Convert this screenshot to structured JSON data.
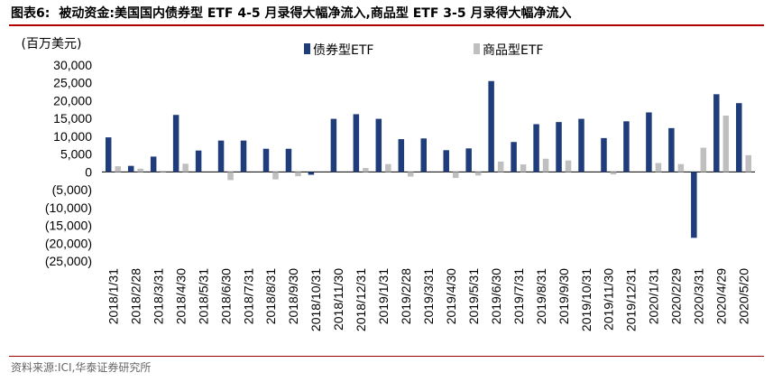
{
  "header": {
    "figure_label": "图表6:",
    "title": "被动资金:美国国内债券型 ETF 4-5 月录得大幅净流入,商品型 ETF 3-5 月录得大幅净流入"
  },
  "source": "资料来源:ICI,华泰证券研究所",
  "colors": {
    "bond": "#1f3d7a",
    "commodity": "#bfbfbf",
    "rule": "#b00000"
  },
  "chart_data": {
    "type": "bar",
    "title": "",
    "xlabel": "",
    "ylabel": "(百万美元)",
    "ylim": [
      -25000,
      30000
    ],
    "yticks": [
      30000,
      25000,
      20000,
      15000,
      10000,
      5000,
      0,
      -5000,
      -10000,
      -15000,
      -20000,
      -25000
    ],
    "ytick_labels": [
      "30,000",
      "25,000",
      "20,000",
      "15,000",
      "10,000",
      "5,000",
      "0",
      "(5,000)",
      "(10,000)",
      "(15,000)",
      "(20,000)",
      "(25,000)"
    ],
    "categories": [
      "2018/1/31",
      "2018/2/28",
      "2018/3/31",
      "2018/4/30",
      "2018/5/31",
      "2018/6/30",
      "2018/7/31",
      "2018/8/31",
      "2018/9/30",
      "2018/10/31",
      "2018/11/30",
      "2018/12/31",
      "2019/1/31",
      "2019/2/28",
      "2019/3/31",
      "2019/4/30",
      "2019/5/31",
      "2019/6/30",
      "2019/7/31",
      "2019/8/31",
      "2019/9/30",
      "2019/10/31",
      "2019/11/30",
      "2019/12/31",
      "2020/1/31",
      "2020/2/29",
      "2020/3/31",
      "2020/4/29",
      "2020/5/20"
    ],
    "series": [
      {
        "name": "债券型ETF",
        "values": [
          9700,
          1700,
          4300,
          16000,
          6000,
          8800,
          8800,
          6500,
          6500,
          -800,
          14900,
          16200,
          14900,
          9200,
          9400,
          6100,
          6600,
          25500,
          8400,
          13400,
          14000,
          14900,
          9500,
          14200,
          16700,
          12300,
          -18500,
          21800,
          19300
        ]
      },
      {
        "name": "商品型ETF",
        "values": [
          1600,
          900,
          300,
          2300,
          0,
          -2300,
          0,
          -2100,
          -1200,
          0,
          0,
          1100,
          2200,
          -1300,
          0,
          -1700,
          -1000,
          2900,
          2100,
          3700,
          3200,
          0,
          -700,
          0,
          2500,
          2200,
          6800,
          15800,
          4700
        ]
      }
    ],
    "legend_position": "top-center",
    "grid": false
  }
}
